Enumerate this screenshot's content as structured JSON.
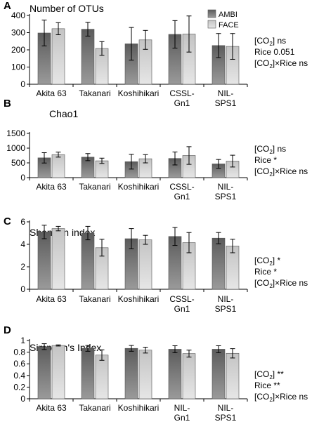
{
  "colors": {
    "ambi_top": "#5c5c5c",
    "ambi_bottom": "#9a9a9a",
    "face_top": "#c4c4c4",
    "face_bottom": "#e6e6e6"
  },
  "chart_data": [
    {
      "type": "bar",
      "panel": "A",
      "title": "Number of OTUs",
      "categories": [
        [
          "Akita 63"
        ],
        [
          "Takanari"
        ],
        [
          "Koshihikari"
        ],
        [
          "CSSL-",
          "Gn1"
        ],
        [
          "NIL-",
          "SPS1"
        ]
      ],
      "ylim": [
        0,
        400
      ],
      "yticks": [
        0,
        100,
        200,
        300,
        400
      ],
      "series": [
        {
          "name": "AMBI",
          "values": [
            298,
            320,
            235,
            290,
            225
          ],
          "errors": [
            75,
            40,
            95,
            80,
            70
          ]
        },
        {
          "name": "FACE",
          "values": [
            323,
            208,
            258,
            292,
            220
          ],
          "errors": [
            35,
            40,
            55,
            105,
            75
          ]
        }
      ],
      "legend": {
        "placement": "top-right"
      },
      "stats": [
        [
          "[CO",
          "2",
          "] ns"
        ],
        [
          "Rice 0.051"
        ],
        [
          "[CO",
          "2",
          "]×Rice ns"
        ]
      ]
    },
    {
      "type": "bar",
      "panel": "B",
      "title": "Chao1",
      "categories": [
        [
          "Akita 63"
        ],
        [
          "Takanari"
        ],
        [
          "Koshihikari"
        ],
        [
          "CSSL-",
          "Gn1"
        ],
        [
          "NIL-",
          "SPS1"
        ]
      ],
      "ylim": [
        0,
        1500
      ],
      "yticks": [
        0,
        500,
        1000,
        1500
      ],
      "series": [
        {
          "name": "AMBI",
          "values": [
            670,
            695,
            540,
            650,
            465
          ],
          "errors": [
            175,
            120,
            250,
            220,
            150
          ]
        },
        {
          "name": "FACE",
          "values": [
            780,
            570,
            640,
            750,
            560
          ],
          "errors": [
            85,
            90,
            140,
            300,
            200
          ]
        }
      ],
      "stats": [
        [
          "[CO",
          "2",
          "] ns"
        ],
        [
          "Rice *"
        ],
        [
          "[CO",
          "2",
          "]×Rice ns"
        ]
      ]
    },
    {
      "type": "bar",
      "panel": "C",
      "title": "Shannon index",
      "categories": [
        [
          "Akita 63"
        ],
        [
          "Takanari"
        ],
        [
          "Koshihikari"
        ],
        [
          "CSSL-",
          "Gn1"
        ],
        [
          "NIL-",
          "SPS1"
        ]
      ],
      "ylim": [
        0,
        6
      ],
      "yticks": [
        0,
        2,
        4,
        6
      ],
      "series": [
        {
          "name": "AMBI",
          "values": [
            5.1,
            5.0,
            4.5,
            4.7,
            4.55
          ],
          "errors": [
            0.6,
            0.6,
            0.9,
            0.8,
            0.5
          ]
        },
        {
          "name": "FACE",
          "values": [
            5.4,
            3.7,
            4.4,
            4.15,
            3.85
          ],
          "errors": [
            0.2,
            0.75,
            0.4,
            0.9,
            0.6
          ]
        }
      ],
      "stats": [
        [
          "[CO",
          "2",
          "] *"
        ],
        [
          "Rice *"
        ],
        [
          "[CO",
          "2",
          "]×Rice ns"
        ]
      ]
    },
    {
      "type": "bar",
      "panel": "D",
      "title": "Simpson's Index",
      "categories": [
        [
          "Akita 63"
        ],
        [
          "Takanari"
        ],
        [
          "Koshihikari"
        ],
        [
          "NIL-",
          "Gn1"
        ],
        [
          "NIL-",
          "SPS1"
        ]
      ],
      "ylim": [
        0,
        1
      ],
      "yticks": [
        0,
        0.2,
        0.4,
        0.6,
        0.8,
        1
      ],
      "series": [
        {
          "name": "AMBI",
          "values": [
            0.895,
            0.865,
            0.865,
            0.85,
            0.85
          ],
          "errors": [
            0.05,
            0.05,
            0.05,
            0.06,
            0.06
          ]
        },
        {
          "name": "FACE",
          "values": [
            0.915,
            0.75,
            0.835,
            0.775,
            0.78
          ],
          "errors": [
            0.01,
            0.09,
            0.05,
            0.06,
            0.08
          ]
        }
      ],
      "stats": [
        [
          "[CO",
          "2",
          "] **"
        ],
        [
          "Rice **"
        ],
        [
          "[CO",
          "2",
          "]×Rice ns"
        ]
      ]
    }
  ]
}
